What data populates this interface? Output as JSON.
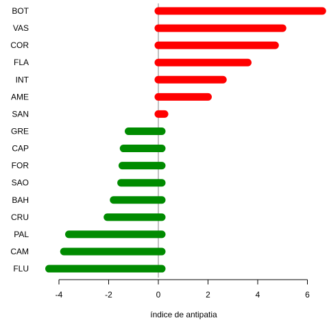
{
  "chart_data": {
    "type": "bar",
    "orientation": "horizontal",
    "xlabel": "índice de antipatia",
    "ylabel": "",
    "xlim": [
      -4.5,
      6.6
    ],
    "xticks": [
      -4,
      -2,
      0,
      2,
      4,
      6
    ],
    "grid": false,
    "categories": [
      "BOT",
      "VAS",
      "COR",
      "FLA",
      "INT",
      "AME",
      "SAN",
      "GRE",
      "CAP",
      "FOR",
      "SAO",
      "BAH",
      "CRU",
      "PAL",
      "CAM",
      "FLU"
    ],
    "values": [
      6.6,
      5.0,
      4.7,
      3.6,
      2.6,
      2.0,
      0.25,
      -1.2,
      -1.4,
      -1.45,
      -1.5,
      -1.8,
      -2.05,
      -3.6,
      -3.8,
      -4.4
    ],
    "colors": {
      "positive": "#ff0000",
      "negative": "#008b00",
      "zero_line": "#c0c0c0"
    }
  }
}
